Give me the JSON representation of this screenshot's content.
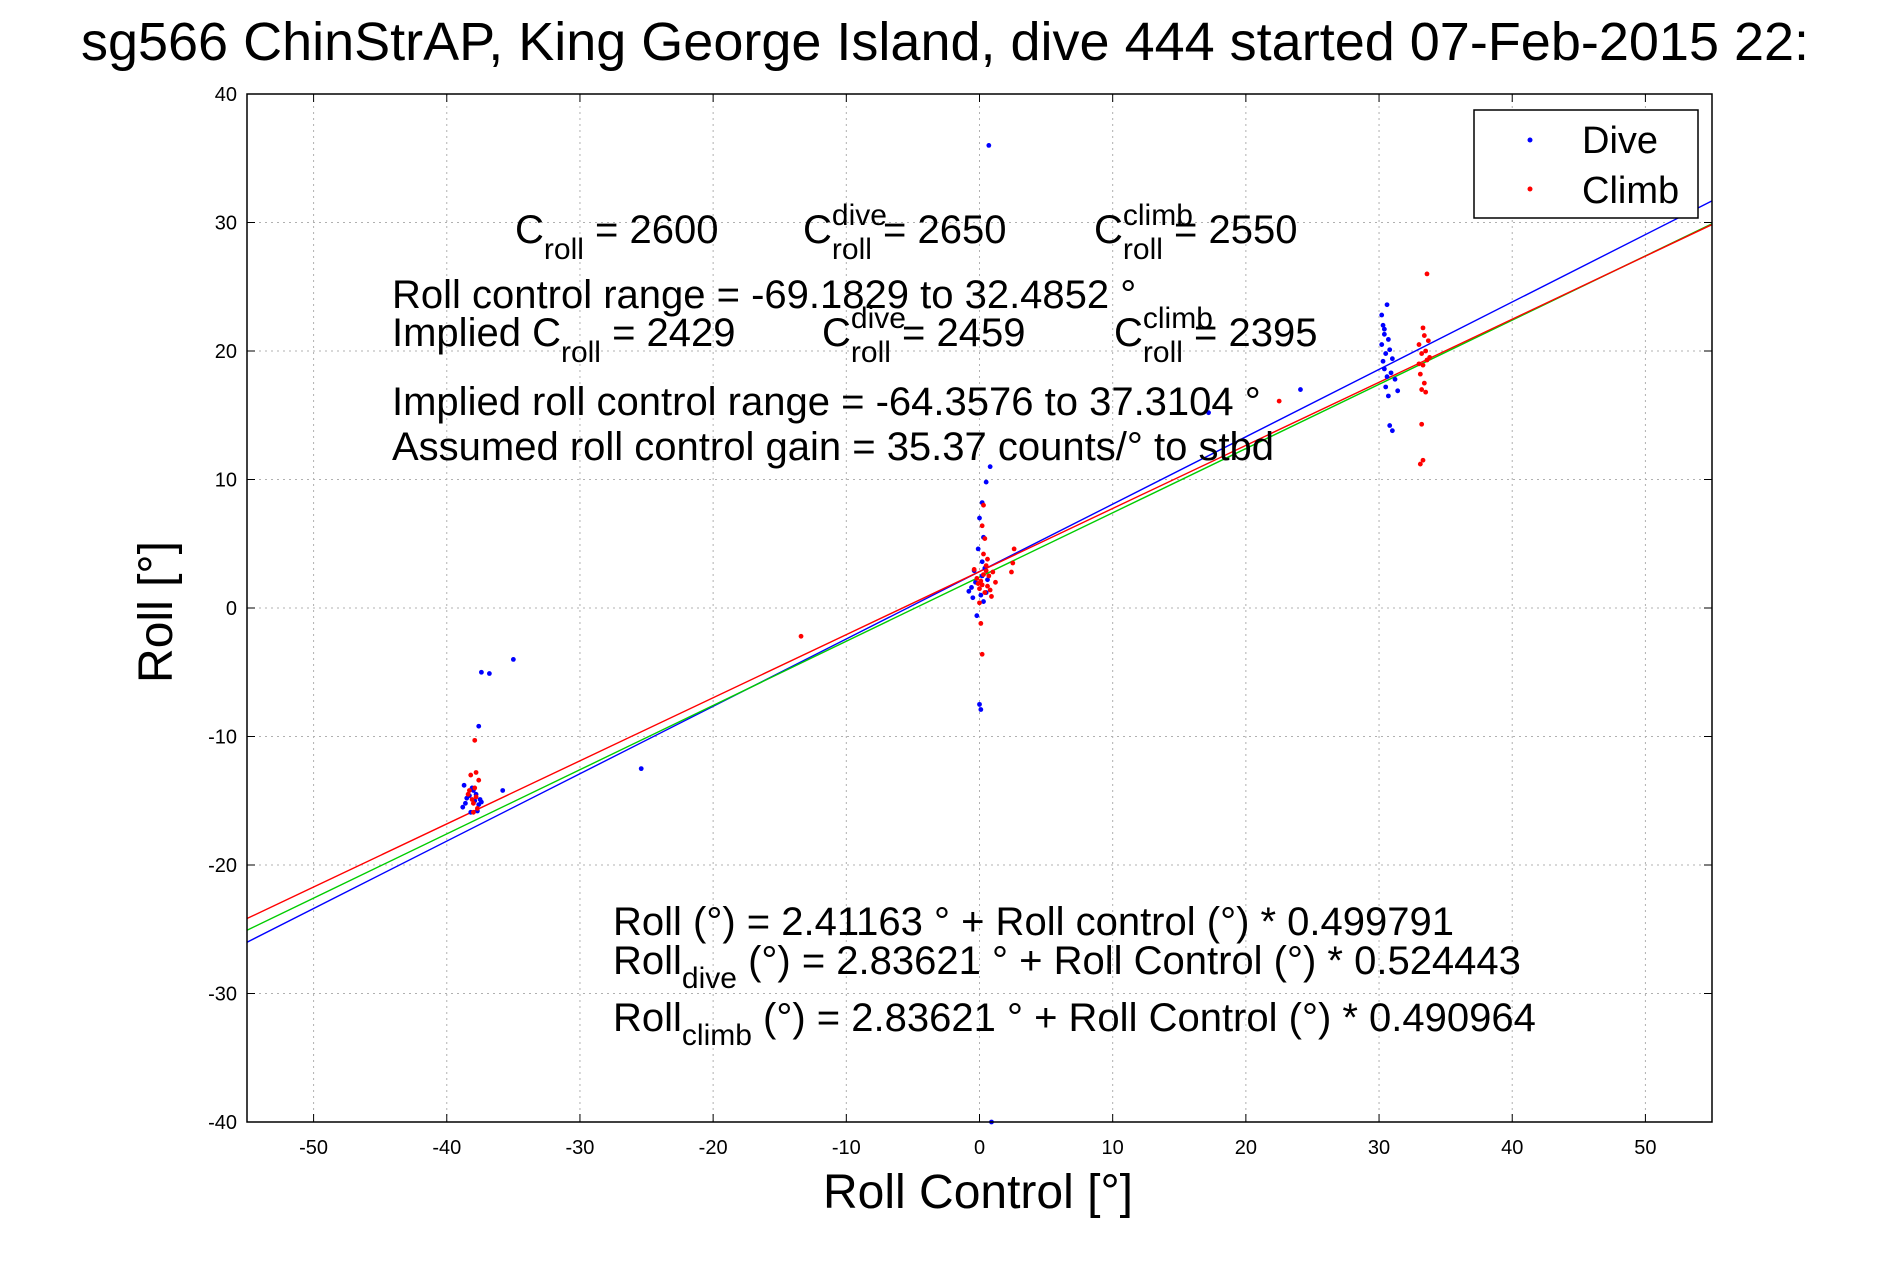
{
  "chart_data": {
    "type": "scatter",
    "title": "sg566 ChinStrAP, King George Island, dive 444 started 07-Feb-2015 22:",
    "xlabel": "Roll Control [°]",
    "ylabel": "Roll [°]",
    "xlim": [
      -55,
      55
    ],
    "ylim": [
      -40,
      40
    ],
    "xticks": [
      -50,
      -40,
      -30,
      -20,
      -10,
      0,
      10,
      20,
      30,
      40,
      50
    ],
    "yticks": [
      -40,
      -30,
      -20,
      -10,
      0,
      10,
      20,
      30,
      40
    ],
    "grid": true,
    "legend": {
      "position": "top-right",
      "entries": [
        "Dive",
        "Climb"
      ]
    },
    "colors": {
      "dive": "#0000ff",
      "climb": "#ff0000",
      "combined_fit": "#00cc00",
      "axis": "#000000",
      "grid": "#b0b0b0"
    },
    "series": [
      {
        "name": "Dive",
        "points": [
          [
            -38.8,
            -15.5
          ],
          [
            -38.6,
            -15.2
          ],
          [
            -38.5,
            -14.8
          ],
          [
            -38.3,
            -14.6
          ],
          [
            -38.2,
            -15.9
          ],
          [
            -38.0,
            -14.2
          ],
          [
            -37.9,
            -15.0
          ],
          [
            -37.8,
            -14.5
          ],
          [
            -37.6,
            -15.3
          ],
          [
            -37.5,
            -14.9
          ],
          [
            -37.7,
            -15.8
          ],
          [
            -38.1,
            -14.0
          ],
          [
            -37.4,
            -15.1
          ],
          [
            -38.7,
            -13.8
          ],
          [
            -37.6,
            -9.2
          ],
          [
            -37.4,
            -5.0
          ],
          [
            -36.8,
            -5.1
          ],
          [
            -35.0,
            -4.0
          ],
          [
            -35.8,
            -14.2
          ],
          [
            -25.4,
            -12.5
          ],
          [
            -0.2,
            -0.6
          ],
          [
            0.0,
            -7.5
          ],
          [
            0.1,
            -7.9
          ],
          [
            0.3,
            0.5
          ],
          [
            0.5,
            1.2
          ],
          [
            -0.5,
            0.8
          ],
          [
            -0.3,
            2.0
          ],
          [
            0.2,
            2.5
          ],
          [
            0.4,
            3.1
          ],
          [
            -0.6,
            1.6
          ],
          [
            -0.1,
            4.6
          ],
          [
            -0.8,
            1.3
          ],
          [
            0.6,
            2.2
          ],
          [
            0.0,
            7.0
          ],
          [
            0.2,
            8.2
          ],
          [
            0.5,
            9.8
          ],
          [
            0.8,
            11.0
          ],
          [
            0.7,
            36.0
          ],
          [
            0.9,
            -40.0
          ],
          [
            0.2,
            3.6
          ],
          [
            -0.4,
            2.9
          ],
          [
            0.1,
            1.0
          ],
          [
            0.3,
            5.5
          ],
          [
            30.2,
            22.8
          ],
          [
            30.3,
            22.0
          ],
          [
            30.4,
            21.3
          ],
          [
            30.2,
            20.5
          ],
          [
            30.5,
            19.8
          ],
          [
            30.3,
            19.2
          ],
          [
            30.4,
            18.6
          ],
          [
            30.6,
            18.0
          ],
          [
            30.5,
            17.2
          ],
          [
            30.7,
            16.5
          ],
          [
            30.8,
            20.1
          ],
          [
            31.0,
            19.4
          ],
          [
            30.9,
            18.3
          ],
          [
            31.2,
            17.8
          ],
          [
            30.6,
            23.6
          ],
          [
            30.8,
            14.2
          ],
          [
            31.0,
            13.8
          ],
          [
            31.4,
            16.9
          ],
          [
            30.4,
            21.7
          ],
          [
            30.7,
            20.9
          ],
          [
            24.1,
            17.0
          ],
          [
            17.2,
            15.2
          ]
        ]
      },
      {
        "name": "Climb",
        "points": [
          [
            -38.4,
            -14.5
          ],
          [
            -38.2,
            -13.0
          ],
          [
            -38.1,
            -14.9
          ],
          [
            -38.0,
            -15.2
          ],
          [
            -37.9,
            -14.0
          ],
          [
            -37.8,
            -12.8
          ],
          [
            -37.7,
            -15.6
          ],
          [
            -38.3,
            -14.2
          ],
          [
            -37.6,
            -13.4
          ],
          [
            -37.9,
            -10.3
          ],
          [
            -38.0,
            -15.9
          ],
          [
            -37.8,
            -14.7
          ],
          [
            -13.4,
            -2.2
          ],
          [
            0.0,
            1.5
          ],
          [
            0.1,
            2.1
          ],
          [
            0.2,
            1.8
          ],
          [
            0.3,
            2.6
          ],
          [
            0.4,
            1.2
          ],
          [
            0.5,
            2.9
          ],
          [
            0.6,
            1.7
          ],
          [
            -0.2,
            2.3
          ],
          [
            -0.1,
            1.9
          ],
          [
            0.0,
            0.4
          ],
          [
            0.1,
            -1.2
          ],
          [
            0.2,
            -3.6
          ],
          [
            0.3,
            4.2
          ],
          [
            0.4,
            5.4
          ],
          [
            0.5,
            3.3
          ],
          [
            0.7,
            2.5
          ],
          [
            0.8,
            1.4
          ],
          [
            1.0,
            2.8
          ],
          [
            1.2,
            2.0
          ],
          [
            0.9,
            0.9
          ],
          [
            0.3,
            8.0
          ],
          [
            0.2,
            6.4
          ],
          [
            2.5,
            3.5
          ],
          [
            2.6,
            4.6
          ],
          [
            2.4,
            2.8
          ],
          [
            -0.4,
            3.0
          ],
          [
            0.6,
            3.8
          ],
          [
            33.0,
            20.5
          ],
          [
            33.2,
            19.8
          ],
          [
            33.4,
            21.2
          ],
          [
            33.3,
            18.9
          ],
          [
            33.5,
            20.0
          ],
          [
            33.6,
            19.3
          ],
          [
            33.1,
            18.2
          ],
          [
            33.4,
            17.5
          ],
          [
            33.2,
            17.0
          ],
          [
            33.5,
            16.8
          ],
          [
            33.7,
            20.8
          ],
          [
            33.3,
            21.8
          ],
          [
            33.6,
            26.0
          ],
          [
            33.2,
            14.3
          ],
          [
            33.3,
            11.5
          ],
          [
            33.1,
            11.2
          ],
          [
            33.8,
            19.5
          ],
          [
            33.0,
            19.0
          ],
          [
            22.5,
            16.1
          ]
        ]
      }
    ],
    "fit_lines": [
      {
        "series": "Dive",
        "intercept": 2.83621,
        "slope": 0.524443
      },
      {
        "series": "Combined",
        "intercept": 2.41163,
        "slope": 0.499791
      },
      {
        "series": "Climb",
        "intercept": 2.83621,
        "slope": 0.490964
      }
    ],
    "annotations": {
      "c_row": [
        {
          "base": "C",
          "sup": "",
          "sub": "roll",
          "rest": " = 2600"
        },
        {
          "base": "C",
          "sup": "dive",
          "sub": "roll",
          "rest": " = 2650"
        },
        {
          "base": "C",
          "sup": "climb",
          "sub": "roll",
          "rest": " = 2550"
        }
      ],
      "range_text": "Roll control range = -69.1829 to 32.4852 °",
      "implied_prefix": "Implied ",
      "implied_row": [
        {
          "base": "C",
          "sup": "",
          "sub": "roll",
          "rest": " = 2429"
        },
        {
          "base": "C",
          "sup": "dive",
          "sub": "roll",
          "rest": " = 2459"
        },
        {
          "base": "C",
          "sup": "climb",
          "sub": "roll",
          "rest": " = 2395"
        }
      ],
      "implied_range_text": "Implied roll control range = -64.3576 to 37.3104 °",
      "gain_text": "Assumed roll control gain = 35.37 counts/° to stbd",
      "eq1": "Roll (°) = 2.41163 ° + Roll control (°) * 0.499791",
      "eq2_base": "Roll",
      "eq2_sub": "dive",
      "eq2_rest": " (°) = 2.83621 ° + Roll Control (°) * 0.524443",
      "eq3_base": "Roll",
      "eq3_sub": "climb",
      "eq3_rest": " (°) = 2.83621 ° + Roll Control (°) * 0.490964"
    }
  }
}
